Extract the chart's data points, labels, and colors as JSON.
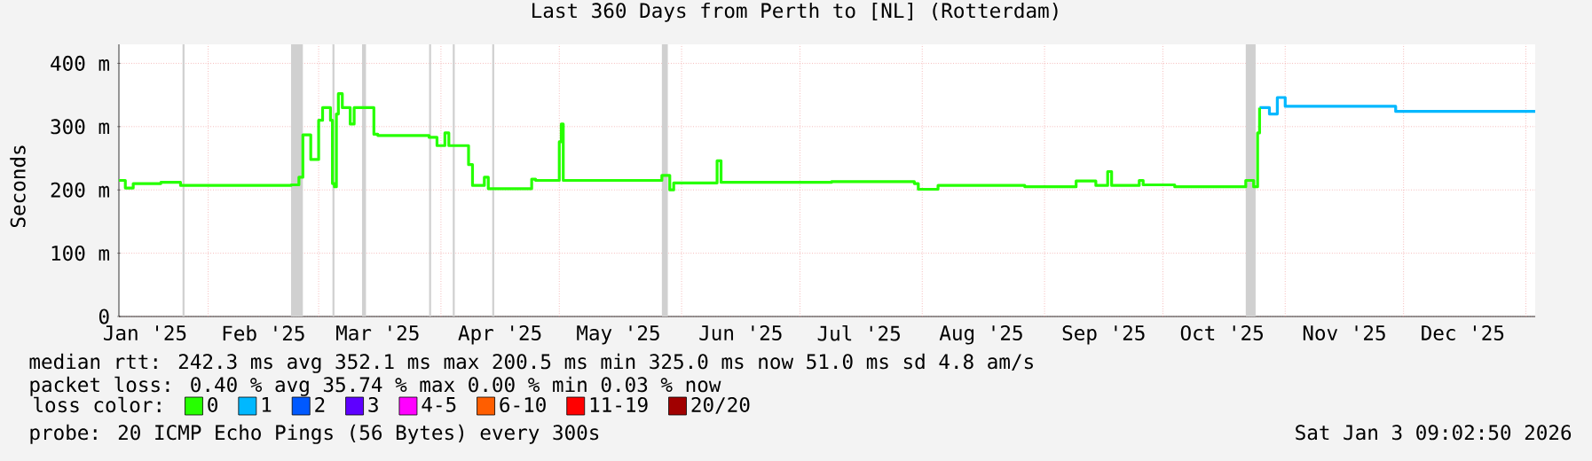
{
  "chart_data": {
    "type": "step",
    "title": "Last 360 Days from Perth to [NL] (Rotterdam)",
    "ylabel": "Seconds",
    "legend_title": "loss color:",
    "xlim": [
      "2025-01-09T09:00",
      "2026-01-03T09:00"
    ],
    "xticks": [
      {
        "value": "2025-01-16",
        "label": "Jan '25"
      },
      {
        "value": "2025-02-15",
        "label": "Feb '25"
      },
      {
        "value": "2025-03-16",
        "label": "Mar '25"
      },
      {
        "value": "2025-04-16",
        "label": "Apr '25"
      },
      {
        "value": "2025-05-16",
        "label": "May '25"
      },
      {
        "value": "2025-06-16",
        "label": "Jun '25"
      },
      {
        "value": "2025-07-16",
        "label": "Jul '25"
      },
      {
        "value": "2025-08-16",
        "label": "Aug '25"
      },
      {
        "value": "2025-09-16",
        "label": "Sep '25"
      },
      {
        "value": "2025-10-16",
        "label": "Oct '25"
      },
      {
        "value": "2025-11-16",
        "label": "Nov '25"
      },
      {
        "value": "2025-12-16",
        "label": "Dec '25"
      },
      {
        "value": "2025-02-01",
        "label": null
      },
      {
        "value": "2025-03-01",
        "label": null
      },
      {
        "value": "2025-04-01",
        "label": null
      },
      {
        "value": "2025-05-01",
        "label": null
      },
      {
        "value": "2025-06-01",
        "label": null
      },
      {
        "value": "2025-07-01",
        "label": null
      },
      {
        "value": "2025-08-01",
        "label": null
      },
      {
        "value": "2025-09-01",
        "label": null
      },
      {
        "value": "2025-10-01",
        "label": null
      },
      {
        "value": "2025-11-01",
        "label": null
      },
      {
        "value": "2025-12-01",
        "label": null
      },
      {
        "value": "2026-01-01",
        "label": null
      }
    ],
    "ylim": [
      0,
      430
    ],
    "yticks": [
      0,
      {
        "value": 100,
        "label": "100 m"
      },
      {
        "value": 200,
        "label": "200 m"
      },
      {
        "value": 300,
        "label": "300 m"
      },
      {
        "value": 400,
        "label": "400 m"
      }
    ],
    "grid": true,
    "legend": "bottom",
    "series": [
      {
        "name": "0",
        "color": "#26ff00",
        "x": [
          "2025-01-09T09:00",
          "2025-01-11",
          "2025-01-13",
          "2025-01-20",
          "2025-01-25",
          "2025-02-22",
          "2025-02-24",
          "2025-02-25",
          "2025-02-27",
          "2025-03-01",
          "2025-03-02",
          "2025-03-04",
          "2025-03-04T12:00",
          "2025-03-05",
          "2025-03-05T12:00",
          "2025-03-06",
          "2025-03-07",
          "2025-03-09",
          "2025-03-10",
          "2025-03-15",
          "2025-03-16",
          "2025-03-29",
          "2025-03-31",
          "2025-04-02",
          "2025-04-03",
          "2025-04-08",
          "2025-04-09",
          "2025-04-12",
          "2025-04-13",
          "2025-04-24",
          "2025-04-25",
          "2025-05-01",
          "2025-05-01T12:00",
          "2025-05-02",
          "2025-05-27",
          "2025-05-29",
          "2025-05-30",
          "2025-06-10",
          "2025-06-11",
          "2025-07-09",
          "2025-07-30",
          "2025-07-31",
          "2025-08-05",
          "2025-08-27",
          "2025-09-09",
          "2025-09-14",
          "2025-09-17",
          "2025-09-18",
          "2025-09-25",
          "2025-09-26",
          "2025-10-04",
          "2025-10-22",
          "2025-10-24",
          "2025-10-25",
          "2025-10-25T12:00"
        ],
        "values": [
          215,
          203,
          210,
          212,
          207,
          208,
          220,
          287,
          248,
          310,
          330,
          310,
          210,
          205,
          320,
          352,
          330,
          304,
          330,
          288,
          286,
          283,
          270,
          290,
          270,
          240,
          207,
          220,
          202,
          217,
          215,
          276,
          304,
          215,
          223,
          200,
          211,
          246,
          212,
          213,
          210,
          201,
          207,
          205,
          214,
          207,
          229,
          207,
          215,
          208,
          205,
          215,
          205,
          290,
          330
        ]
      },
      {
        "name": "1",
        "color": "#00b8ff",
        "x": [
          "2025-10-25T12:00",
          "2025-10-28",
          "2025-10-30",
          "2025-11-01",
          "2025-11-29",
          "2026-01-03T09:00"
        ],
        "values": [
          330,
          320,
          346,
          332,
          324,
          324
        ]
      },
      {
        "name": "2",
        "color": "#0059ff"
      },
      {
        "name": "3",
        "color": "#5e00ff"
      },
      {
        "name": "4-5",
        "color": "#ff00ff"
      },
      {
        "name": "6-10",
        "color": "#ff5e00"
      },
      {
        "name": "11-19",
        "color": "#ff0000"
      },
      {
        "name": "20/20",
        "color": "#a10000"
      }
    ],
    "bands": [
      {
        "axis": "x",
        "from": "2025-01-25T12:00",
        "to": "2025-01-26",
        "color": "#d0d0d0"
      },
      {
        "axis": "x",
        "from": "2025-02-22",
        "to": "2025-02-25",
        "color": "#d0d0d0"
      },
      {
        "axis": "x",
        "from": "2025-03-04T12:00",
        "to": "2025-03-05",
        "color": "#d0d0d0"
      },
      {
        "axis": "x",
        "from": "2025-03-12",
        "to": "2025-03-13",
        "color": "#d0d0d0"
      },
      {
        "axis": "x",
        "from": "2025-03-29",
        "to": "2025-03-29T12:00",
        "color": "#d0d0d0"
      },
      {
        "axis": "x",
        "from": "2025-04-04",
        "to": "2025-04-04T12:00",
        "color": "#d0d0d0"
      },
      {
        "axis": "x",
        "from": "2025-04-14",
        "to": "2025-04-14T12:00",
        "color": "#d0d0d0"
      },
      {
        "axis": "x",
        "from": "2025-05-27",
        "to": "2025-05-28T12:00",
        "color": "#d0d0d0"
      },
      {
        "axis": "x",
        "from": "2025-10-22",
        "to": "2025-10-24T12:00",
        "color": "#d0d0d0"
      }
    ],
    "annotations": [
      "median rtt:  242.3 ms avg  352.1 ms max  200.5 ms min  325.0 ms now  51.0 ms sd  4.8   am/s",
      "packet loss: 0.40 % avg  35.74 % max  0.00 % min  0.03 % now",
      "probe:       20 ICMP Echo Pings (56 Bytes) every 300s",
      "Sat Jan  3 09:02:50 2026"
    ]
  }
}
